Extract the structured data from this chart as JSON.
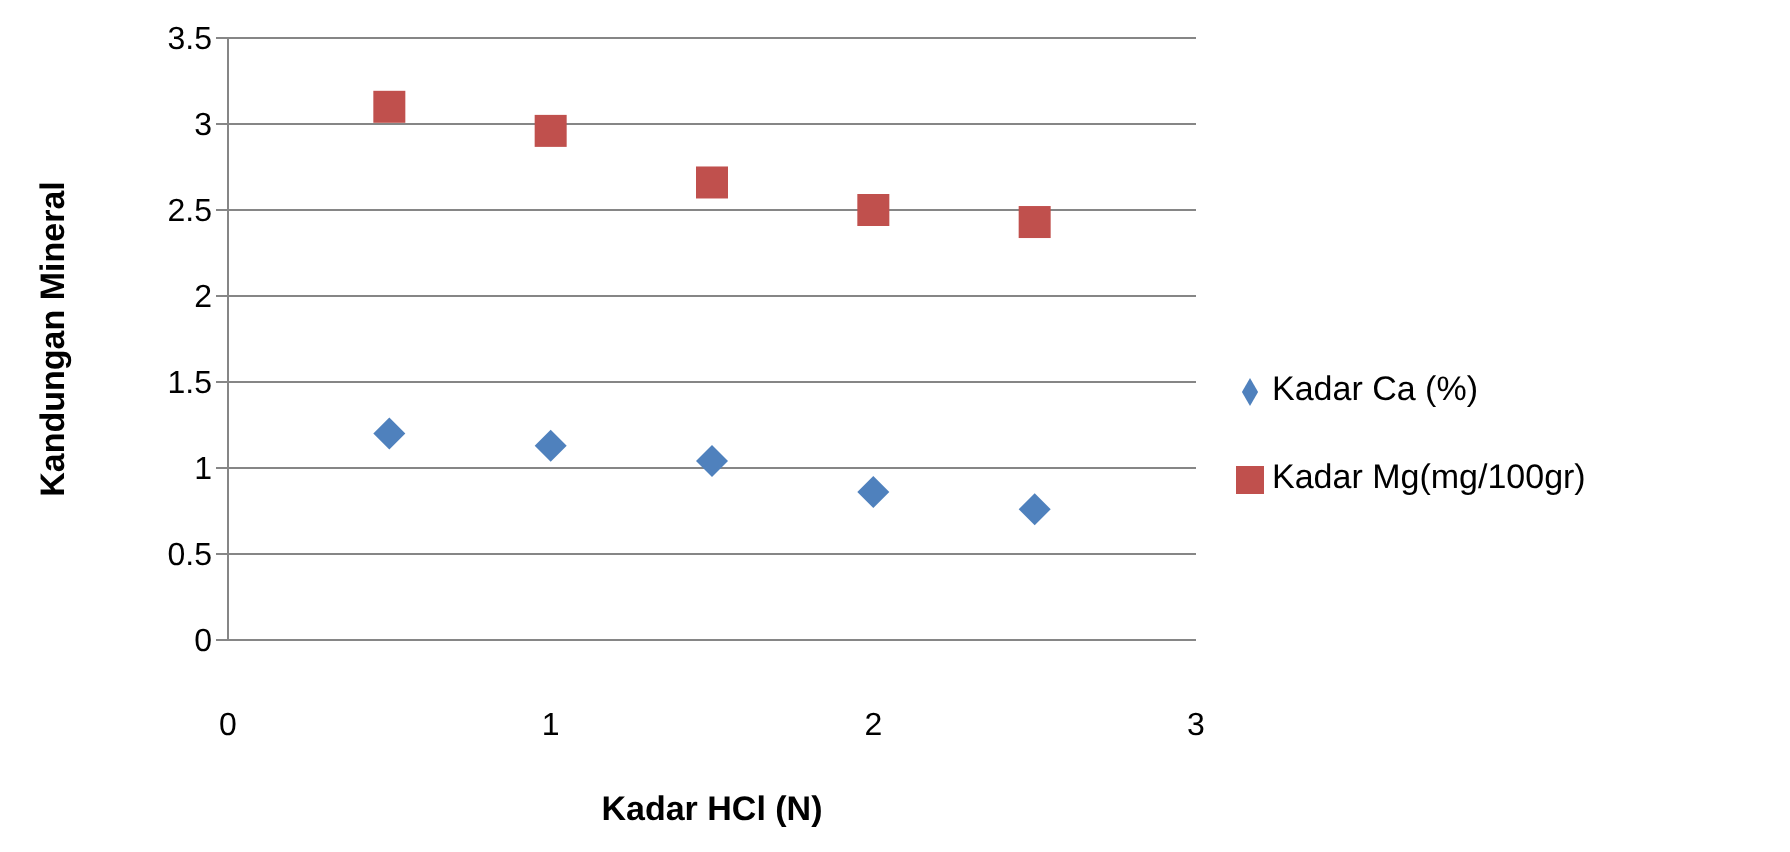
{
  "chart_data": {
    "type": "scatter",
    "xlabel": "Kadar HCl (N)",
    "ylabel": "Kandungan Mineral",
    "x": [
      0.5,
      1,
      1.5,
      2,
      2.5
    ],
    "series": [
      {
        "name": "Kadar Ca (%)",
        "color": "#4f81bd",
        "marker": "diamond",
        "values": [
          1.2,
          1.13,
          1.04,
          0.86,
          0.76
        ]
      },
      {
        "name": "Kadar Mg(mg/100gr)",
        "color": "#c0504d",
        "marker": "square",
        "values": [
          3.1,
          2.96,
          2.66,
          2.5,
          2.43
        ]
      }
    ],
    "xlim": [
      0,
      3
    ],
    "xticks": [
      0,
      1,
      2,
      3
    ],
    "ylim": [
      0,
      3.5
    ],
    "yticks": [
      0,
      0.5,
      1,
      1.5,
      2,
      2.5,
      3,
      3.5
    ],
    "grid": "y",
    "legend": "right"
  }
}
